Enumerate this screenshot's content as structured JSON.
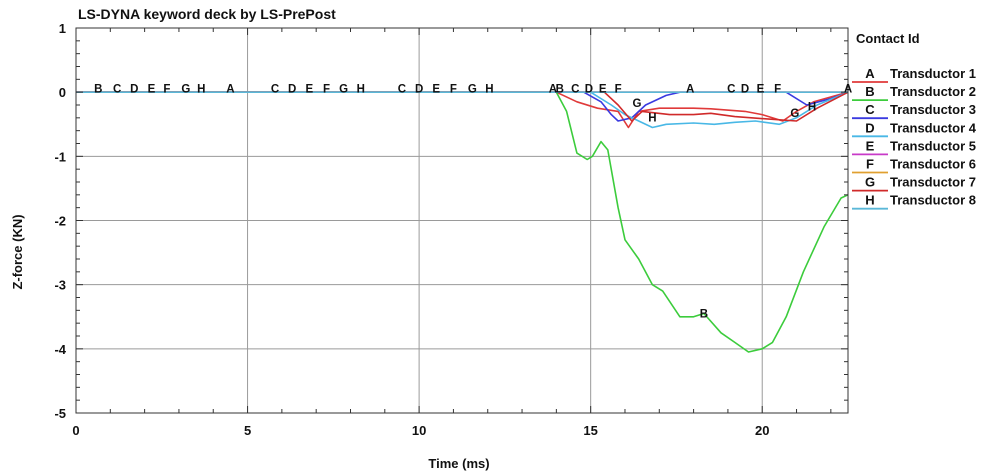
{
  "chart_data": {
    "type": "line",
    "title": "LS-DYNA keyword deck by LS-PrePost",
    "xlabel": "Time (ms)",
    "ylabel": "Z-force (KN)",
    "xlim": [
      0,
      22.5
    ],
    "ylim": [
      -5,
      1
    ],
    "x_ticks": [
      "0",
      "5",
      "10",
      "15",
      "20"
    ],
    "y_ticks": [
      "1",
      "0",
      "-1",
      "-2",
      "-3",
      "-4",
      "-5"
    ],
    "grid": true,
    "legend": {
      "title": "Contact Id",
      "position": "right"
    },
    "series": [
      {
        "id": "A",
        "name": "Transductor 1",
        "color": "#e03a3a",
        "points": [
          [
            0,
            0
          ],
          [
            14,
            0
          ],
          [
            14.6,
            -0.15
          ],
          [
            15.2,
            -0.25
          ],
          [
            15.8,
            -0.3
          ],
          [
            16.1,
            -0.55
          ],
          [
            16.4,
            -0.3
          ],
          [
            17,
            -0.25
          ],
          [
            18,
            -0.25
          ],
          [
            18.5,
            -0.26
          ],
          [
            19.5,
            -0.3
          ],
          [
            20,
            -0.35
          ],
          [
            20.6,
            -0.45
          ],
          [
            21,
            -0.3
          ],
          [
            21.5,
            -0.15
          ],
          [
            22.5,
            0
          ]
        ],
        "labels": [
          [
            4.5,
            0
          ],
          [
            13.9,
            0
          ],
          [
            17.9,
            0
          ],
          [
            22.5,
            0
          ]
        ]
      },
      {
        "id": "B",
        "name": "Transductor 2",
        "color": "#3ccc3c",
        "points": [
          [
            0,
            0
          ],
          [
            14,
            0
          ],
          [
            14.3,
            -0.3
          ],
          [
            14.6,
            -0.95
          ],
          [
            14.9,
            -1.05
          ],
          [
            15.05,
            -1.0
          ],
          [
            15.3,
            -0.77
          ],
          [
            15.5,
            -0.9
          ],
          [
            15.8,
            -1.8
          ],
          [
            16,
            -2.3
          ],
          [
            16.4,
            -2.6
          ],
          [
            16.8,
            -3.0
          ],
          [
            17.1,
            -3.1
          ],
          [
            17.6,
            -3.5
          ],
          [
            18.0,
            -3.5
          ],
          [
            18.3,
            -3.45
          ],
          [
            18.8,
            -3.75
          ],
          [
            19.2,
            -3.9
          ],
          [
            19.6,
            -4.05
          ],
          [
            20.0,
            -4.0
          ],
          [
            20.3,
            -3.9
          ],
          [
            20.7,
            -3.5
          ],
          [
            21.2,
            -2.8
          ],
          [
            21.8,
            -2.1
          ],
          [
            22.3,
            -1.65
          ],
          [
            22.5,
            -1.6
          ]
        ],
        "labels": [
          [
            0.65,
            0
          ],
          [
            14.1,
            0
          ],
          [
            18.3,
            -3.5
          ]
        ]
      },
      {
        "id": "C",
        "name": "Transductor 3",
        "color": "#3a3ae0",
        "points": [
          [
            0,
            0
          ],
          [
            14.8,
            0
          ],
          [
            15.3,
            -0.15
          ],
          [
            15.6,
            -0.35
          ],
          [
            15.8,
            -0.45
          ],
          [
            16.2,
            -0.4
          ],
          [
            16.6,
            -0.2
          ],
          [
            17.2,
            -0.05
          ],
          [
            17.6,
            0
          ],
          [
            20.7,
            0
          ],
          [
            21.3,
            -0.2
          ],
          [
            22.0,
            -0.1
          ],
          [
            22.5,
            0
          ]
        ],
        "labels": [
          [
            1.2,
            0
          ],
          [
            5.8,
            0
          ],
          [
            9.5,
            0
          ],
          [
            14.55,
            0
          ],
          [
            19.1,
            0
          ]
        ]
      },
      {
        "id": "D",
        "name": "Transductor 4",
        "color": "#49b8e6",
        "points": [
          [
            0,
            0
          ],
          [
            15,
            0
          ],
          [
            15.6,
            -0.2
          ],
          [
            16,
            -0.35
          ],
          [
            16.4,
            -0.45
          ],
          [
            16.8,
            -0.55
          ],
          [
            17.2,
            -0.5
          ],
          [
            18,
            -0.48
          ],
          [
            18.6,
            -0.5
          ],
          [
            19.2,
            -0.47
          ],
          [
            19.8,
            -0.45
          ],
          [
            20.5,
            -0.5
          ],
          [
            21,
            -0.4
          ],
          [
            21.6,
            -0.2
          ],
          [
            22.5,
            0
          ]
        ],
        "labels": [
          [
            1.7,
            0
          ],
          [
            6.3,
            0
          ],
          [
            10.0,
            0
          ],
          [
            14.95,
            0
          ],
          [
            19.5,
            0
          ]
        ]
      },
      {
        "id": "E",
        "name": "Transductor 5",
        "color": "#c83ac8",
        "points": [
          [
            0,
            0
          ],
          [
            22.5,
            0
          ]
        ],
        "labels": [
          [
            2.2,
            0
          ],
          [
            6.8,
            0
          ],
          [
            10.5,
            0
          ],
          [
            15.35,
            0
          ],
          [
            19.95,
            0
          ]
        ]
      },
      {
        "id": "F",
        "name": "Transductor 6",
        "color": "#e0a030",
        "points": [
          [
            0,
            0
          ],
          [
            22.5,
            0
          ]
        ],
        "labels": [
          [
            2.65,
            0
          ],
          [
            7.3,
            0
          ],
          [
            11.0,
            0
          ],
          [
            15.8,
            0
          ],
          [
            20.45,
            0
          ]
        ]
      },
      {
        "id": "G",
        "name": "Transductor 7",
        "color": "#d02a2a",
        "points": [
          [
            0,
            0
          ],
          [
            15.4,
            0
          ],
          [
            15.8,
            -0.2
          ],
          [
            16.2,
            -0.45
          ],
          [
            16.5,
            -0.3
          ],
          [
            17.3,
            -0.35
          ],
          [
            18,
            -0.35
          ],
          [
            18.5,
            -0.33
          ],
          [
            19.2,
            -0.38
          ],
          [
            20.2,
            -0.42
          ],
          [
            21,
            -0.45
          ],
          [
            21.6,
            -0.25
          ],
          [
            22.5,
            0
          ]
        ],
        "labels": [
          [
            3.2,
            0
          ],
          [
            7.8,
            0
          ],
          [
            11.55,
            0
          ],
          [
            16.35,
            -0.22
          ],
          [
            20.95,
            -0.38
          ]
        ]
      },
      {
        "id": "H",
        "name": "Transductor 8",
        "color": "#5ab8d8",
        "points": [
          [
            0,
            0
          ],
          [
            22.5,
            0
          ]
        ],
        "labels": [
          [
            3.65,
            0
          ],
          [
            8.3,
            0
          ],
          [
            12.05,
            0
          ],
          [
            16.8,
            -0.45
          ],
          [
            21.45,
            -0.28
          ]
        ]
      }
    ]
  }
}
